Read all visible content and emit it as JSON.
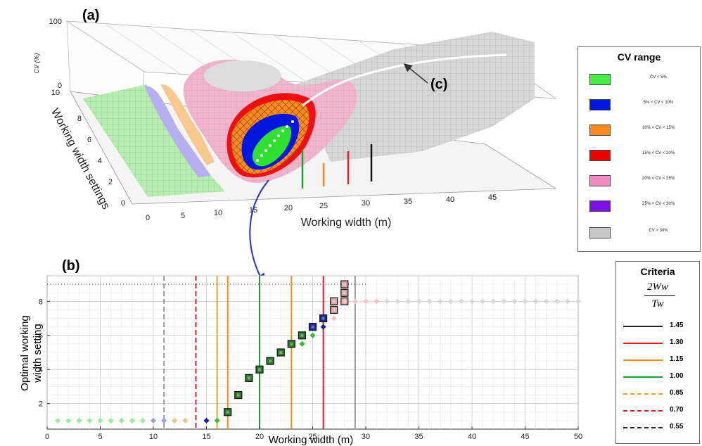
{
  "panel_a": {
    "label": "(a)",
    "annotation": "(c)",
    "zlabel": "CV (%)",
    "ylabel": "Working width settings",
    "xlabel": "Working width (m)",
    "z_ticks": [
      "0",
      "10",
      "100"
    ],
    "y_ticks": [
      "0",
      "2",
      "4",
      "6",
      "8",
      "10"
    ],
    "x_ticks": [
      "0",
      "5",
      "10",
      "15",
      "20",
      "25",
      "30",
      "35",
      "40",
      "45"
    ]
  },
  "cv_legend": {
    "title": "CV range",
    "items": [
      {
        "label": "CV < 5%",
        "color": "#44ee44"
      },
      {
        "label": "5% < CV < 10%",
        "color": "#0018dd"
      },
      {
        "label": "10% < CV < 15%",
        "color": "#ff8a1e"
      },
      {
        "label": "15% < CV < 20%",
        "color": "#ee0000"
      },
      {
        "label": "20% < CV < 25%",
        "color": "#f08cc0"
      },
      {
        "label": "25% < CV < 30%",
        "color": "#7a10e8"
      },
      {
        "label": "CV > 30%",
        "color": "#c8c8c8"
      }
    ]
  },
  "criteria_legend": {
    "title": "Criteria",
    "numerator": "2Ww",
    "denominator": "Tw",
    "items": [
      {
        "label": "1.45",
        "color": "#222222",
        "style": "solid"
      },
      {
        "label": "1.30",
        "color": "#e02020",
        "style": "solid"
      },
      {
        "label": "1.15",
        "color": "#f08a20",
        "style": "solid"
      },
      {
        "label": "1.00",
        "color": "#20a030",
        "style": "solid"
      },
      {
        "label": "0.85",
        "color": "#f2a030",
        "style": "dashed"
      },
      {
        "label": "0.70",
        "color": "#e02020",
        "style": "dashed"
      },
      {
        "label": "0.55",
        "color": "#222222",
        "style": "dashed"
      }
    ]
  },
  "chart_data": {
    "type": "scatter",
    "label": "(b)",
    "xlabel": "Working width (m)",
    "ylabel": "Optimal working width setting",
    "xlim": [
      0,
      50
    ],
    "ylim": [
      0.5,
      9.5
    ],
    "x_ticks": [
      0,
      5,
      10,
      15,
      20,
      25,
      30,
      35,
      40,
      45,
      50
    ],
    "y_ticks": [
      2,
      4,
      6,
      8
    ],
    "grid": true,
    "vertical_lines": [
      {
        "x": 29,
        "color": "#999999",
        "style": "solid"
      },
      {
        "x": 26,
        "color": "#e02020",
        "style": "solid"
      },
      {
        "x": 23,
        "color": "#f08a20",
        "style": "solid"
      },
      {
        "x": 20,
        "color": "#20a030",
        "style": "solid"
      },
      {
        "x": 17,
        "color": "#f08a20",
        "style": "solid"
      },
      {
        "x": 16,
        "color": "#f2a030",
        "style": "solid"
      },
      {
        "x": 14,
        "color": "#e02020",
        "style": "dashed"
      },
      {
        "x": 11,
        "color": "#999999",
        "style": "dashed"
      }
    ],
    "dotted_hline": 9,
    "series": [
      {
        "marker": "square",
        "color": "#2c7a2c",
        "x": [
          17,
          18,
          19,
          20,
          21,
          22,
          23,
          24
        ],
        "y": [
          1.5,
          2.5,
          3.5,
          4.0,
          4.5,
          5.0,
          5.5,
          6.0
        ]
      },
      {
        "marker": "square",
        "color": "#1a2a9a",
        "x": [
          25,
          26
        ],
        "y": [
          6.5,
          7.0
        ]
      },
      {
        "marker": "square",
        "color": "#d8a8a8",
        "x": [
          27,
          27,
          28,
          28,
          28
        ],
        "y": [
          7.5,
          8.0,
          8.0,
          8.5,
          9.0
        ]
      },
      {
        "marker": "diamond",
        "color": "#30c030",
        "x": [
          15,
          16,
          24,
          25
        ],
        "y": [
          1.0,
          1.0,
          5.5,
          6.0
        ]
      },
      {
        "marker": "diamond",
        "color": "#1a1ab0",
        "x": [
          15,
          26
        ],
        "y": [
          1.0,
          6.5
        ]
      },
      {
        "marker": "diamond",
        "color": "#9aee9a",
        "x": [
          1,
          2,
          3,
          4,
          5,
          6,
          7,
          8,
          9
        ],
        "y": [
          1,
          1,
          1,
          1,
          1,
          1,
          1,
          1,
          1
        ]
      },
      {
        "marker": "diamond",
        "color": "#9a9af0",
        "x": [
          10,
          11
        ],
        "y": [
          1,
          1
        ]
      },
      {
        "marker": "diamond",
        "color": "#f4c090",
        "x": [
          12,
          13
        ],
        "y": [
          1,
          1
        ]
      },
      {
        "marker": "diamond",
        "color": "#ffc0c0",
        "x": [
          27,
          28,
          29,
          30,
          31
        ],
        "y": [
          7.0,
          8.0,
          8.0,
          8.0,
          8.0
        ]
      },
      {
        "marker": "diamond",
        "color": "#d8d8d8",
        "x": [
          32,
          33,
          34,
          35,
          36,
          37,
          38,
          39,
          40,
          41,
          42,
          43,
          44,
          45,
          46,
          47,
          48,
          49,
          50
        ],
        "y": [
          8,
          8,
          8,
          8,
          8,
          8,
          8,
          8,
          8,
          8,
          8,
          8,
          8,
          8,
          8,
          8,
          8,
          8,
          8
        ]
      }
    ]
  }
}
